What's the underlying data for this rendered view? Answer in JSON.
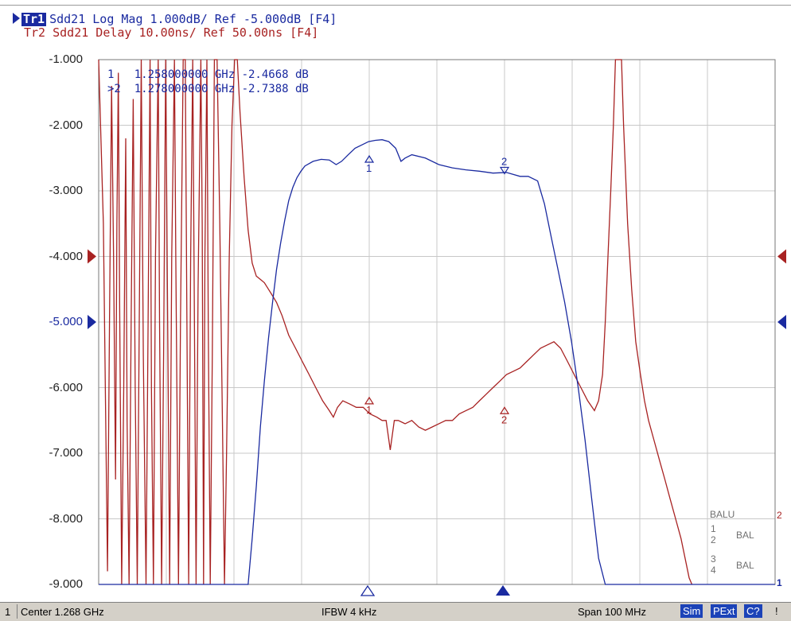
{
  "header": {
    "tr1_tag": "Tr1",
    "tr1_text": "Sdd21 Log Mag 1.000dB/ Ref -5.000dB [F4]",
    "tr2_text": "Tr2 Sdd21 Delay 10.00ns/ Ref 50.00ns [F4]"
  },
  "markers_table": [
    {
      "index": "1",
      "text": "1   1.258000000 GHz -2.4668 dB"
    },
    {
      "index": "2",
      "text": ">2  1.278000000 GHz -2.7388 dB"
    }
  ],
  "balun": {
    "title": "BALU",
    "l1": "1",
    "l2": "2",
    "l3": "3",
    "l4": "4",
    "b1": "BAL",
    "b2": "BAL",
    "edge2": "2",
    "edge1": "1"
  },
  "status": {
    "channel": "1",
    "center": "Center 1.268 GHz",
    "ifbw": "IFBW 4 kHz",
    "span": "Span 100 MHz",
    "btn_sim": "Sim",
    "btn_pext": "PExt",
    "btn_c": "C?",
    "btn_warn": "!"
  },
  "colors": {
    "tr1": "#1a2aa0",
    "tr2": "#a82222",
    "grid": "#c8c8c8"
  },
  "chart_data": {
    "type": "line",
    "x_range_ghz": [
      1.218,
      1.318
    ],
    "ylim": [
      -9,
      -1
    ],
    "ytick_labels": [
      "-1.000",
      "-2.000",
      "-3.000",
      "-4.000",
      "-5.000",
      "-6.000",
      "-7.000",
      "-8.000",
      "-9.000"
    ],
    "grid": true,
    "series": [
      {
        "name": "Tr1",
        "points": [
          [
            1.218,
            -9.0
          ],
          [
            1.2401,
            -9.0
          ],
          [
            1.2407,
            -8.3
          ],
          [
            1.2413,
            -7.5
          ],
          [
            1.2419,
            -6.6
          ],
          [
            1.2425,
            -5.9
          ],
          [
            1.2431,
            -5.25
          ],
          [
            1.2437,
            -4.7
          ],
          [
            1.2443,
            -4.2
          ],
          [
            1.2449,
            -3.8
          ],
          [
            1.2455,
            -3.45
          ],
          [
            1.2461,
            -3.15
          ],
          [
            1.2467,
            -2.95
          ],
          [
            1.2473,
            -2.8
          ],
          [
            1.2479,
            -2.7
          ],
          [
            1.2485,
            -2.62
          ],
          [
            1.2497,
            -2.55
          ],
          [
            1.2509,
            -2.52
          ],
          [
            1.2521,
            -2.53
          ],
          [
            1.2531,
            -2.6
          ],
          [
            1.2539,
            -2.55
          ],
          [
            1.2549,
            -2.45
          ],
          [
            1.2559,
            -2.35
          ],
          [
            1.2569,
            -2.3
          ],
          [
            1.2579,
            -2.25
          ],
          [
            1.2589,
            -2.23
          ],
          [
            1.2599,
            -2.22
          ],
          [
            1.2609,
            -2.25
          ],
          [
            1.2619,
            -2.35
          ],
          [
            1.2627,
            -2.55
          ],
          [
            1.2633,
            -2.5
          ],
          [
            1.2643,
            -2.45
          ],
          [
            1.2663,
            -2.5
          ],
          [
            1.2683,
            -2.6
          ],
          [
            1.2703,
            -2.65
          ],
          [
            1.2723,
            -2.68
          ],
          [
            1.2743,
            -2.7
          ],
          [
            1.2763,
            -2.73
          ],
          [
            1.2783,
            -2.72
          ],
          [
            1.2793,
            -2.75
          ],
          [
            1.2803,
            -2.78
          ],
          [
            1.2815,
            -2.78
          ],
          [
            1.2829,
            -2.85
          ],
          [
            1.2839,
            -3.2
          ],
          [
            1.2849,
            -3.7
          ],
          [
            1.2859,
            -4.2
          ],
          [
            1.2869,
            -4.7
          ],
          [
            1.2879,
            -5.3
          ],
          [
            1.2889,
            -6.0
          ],
          [
            1.2899,
            -6.8
          ],
          [
            1.2909,
            -7.7
          ],
          [
            1.2919,
            -8.6
          ],
          [
            1.2929,
            -9.0
          ],
          [
            1.318,
            -9.0
          ]
        ]
      },
      {
        "name": "Tr2",
        "points": [
          [
            1.218,
            -1.0
          ],
          [
            1.2187,
            -3.5
          ],
          [
            1.2193,
            -8.8
          ],
          [
            1.2196,
            -5.0
          ],
          [
            1.2199,
            -1.4
          ],
          [
            1.2202,
            -4.0
          ],
          [
            1.2205,
            -7.4
          ],
          [
            1.2207,
            -3.5
          ],
          [
            1.2209,
            -1.2
          ],
          [
            1.2211,
            -4.8
          ],
          [
            1.2214,
            -9.0
          ],
          [
            1.2217,
            -6.0
          ],
          [
            1.222,
            -2.2
          ],
          [
            1.2222,
            -6.5
          ],
          [
            1.2225,
            -9.0
          ],
          [
            1.2228,
            -5.0
          ],
          [
            1.2231,
            -1.6
          ],
          [
            1.2234,
            -6.0
          ],
          [
            1.2237,
            -9.0
          ],
          [
            1.224,
            -5.0
          ],
          [
            1.2243,
            -1.0
          ],
          [
            1.2246,
            -5.5
          ],
          [
            1.225,
            -9.0
          ],
          [
            1.2253,
            -5.0
          ],
          [
            1.2256,
            -1.0
          ],
          [
            1.2258,
            -6.0
          ],
          [
            1.2261,
            -9.0
          ],
          [
            1.2264,
            -4.0
          ],
          [
            1.2268,
            -1.0
          ],
          [
            1.227,
            -5.0
          ],
          [
            1.2273,
            -9.0
          ],
          [
            1.2276,
            -5.5
          ],
          [
            1.2279,
            -1.0
          ],
          [
            1.2282,
            -5.0
          ],
          [
            1.2285,
            -9.0
          ],
          [
            1.2288,
            -4.0
          ],
          [
            1.2292,
            -1.0
          ],
          [
            1.2294,
            -4.0
          ],
          [
            1.2298,
            -9.0
          ],
          [
            1.2301,
            -5.0
          ],
          [
            1.2305,
            -1.0
          ],
          [
            1.2308,
            -1.0
          ],
          [
            1.2311,
            -6.0
          ],
          [
            1.2313,
            -9.0
          ],
          [
            1.2316,
            -4.0
          ],
          [
            1.2319,
            -1.0
          ],
          [
            1.2321,
            -4.0
          ],
          [
            1.2324,
            -9.0
          ],
          [
            1.2327,
            -4.5
          ],
          [
            1.2331,
            -1.0
          ],
          [
            1.2333,
            -3.5
          ],
          [
            1.2335,
            -9.0
          ],
          [
            1.2337,
            -4.0
          ],
          [
            1.234,
            -1.0
          ],
          [
            1.2342,
            -5.0
          ],
          [
            1.2345,
            -9.0
          ],
          [
            1.2348,
            -5.5
          ],
          [
            1.2351,
            -1.0
          ],
          [
            1.2355,
            -1.0
          ],
          [
            1.2359,
            -3.5
          ],
          [
            1.2363,
            -6.5
          ],
          [
            1.2366,
            -9.0
          ],
          [
            1.2369,
            -7.0
          ],
          [
            1.2373,
            -4.0
          ],
          [
            1.2377,
            -2.0
          ],
          [
            1.2381,
            -1.0
          ],
          [
            1.2385,
            -1.0
          ],
          [
            1.2389,
            -1.8
          ],
          [
            1.2395,
            -2.8
          ],
          [
            1.2401,
            -3.6
          ],
          [
            1.2407,
            -4.1
          ],
          [
            1.2413,
            -4.3
          ],
          [
            1.2419,
            -4.35
          ],
          [
            1.2425,
            -4.4
          ],
          [
            1.2431,
            -4.5
          ],
          [
            1.2437,
            -4.6
          ],
          [
            1.2443,
            -4.7
          ],
          [
            1.2451,
            -4.9
          ],
          [
            1.2461,
            -5.2
          ],
          [
            1.2471,
            -5.4
          ],
          [
            1.2481,
            -5.6
          ],
          [
            1.2491,
            -5.8
          ],
          [
            1.2501,
            -6.0
          ],
          [
            1.2511,
            -6.2
          ],
          [
            1.2521,
            -6.35
          ],
          [
            1.2527,
            -6.45
          ],
          [
            1.2533,
            -6.3
          ],
          [
            1.2541,
            -6.2
          ],
          [
            1.2551,
            -6.25
          ],
          [
            1.2561,
            -6.3
          ],
          [
            1.2571,
            -6.3
          ],
          [
            1.2581,
            -6.4
          ],
          [
            1.2591,
            -6.45
          ],
          [
            1.2599,
            -6.5
          ],
          [
            1.2605,
            -6.5
          ],
          [
            1.2611,
            -6.95
          ],
          [
            1.2617,
            -6.5
          ],
          [
            1.2623,
            -6.5
          ],
          [
            1.2633,
            -6.55
          ],
          [
            1.2643,
            -6.5
          ],
          [
            1.2653,
            -6.6
          ],
          [
            1.2663,
            -6.65
          ],
          [
            1.2673,
            -6.6
          ],
          [
            1.2683,
            -6.55
          ],
          [
            1.2693,
            -6.5
          ],
          [
            1.2703,
            -6.5
          ],
          [
            1.2713,
            -6.4
          ],
          [
            1.2723,
            -6.35
          ],
          [
            1.2733,
            -6.3
          ],
          [
            1.2743,
            -6.2
          ],
          [
            1.2753,
            -6.1
          ],
          [
            1.2763,
            -6.0
          ],
          [
            1.2773,
            -5.9
          ],
          [
            1.2783,
            -5.8
          ],
          [
            1.2793,
            -5.75
          ],
          [
            1.2803,
            -5.7
          ],
          [
            1.2813,
            -5.6
          ],
          [
            1.2823,
            -5.5
          ],
          [
            1.2833,
            -5.4
          ],
          [
            1.2843,
            -5.35
          ],
          [
            1.2853,
            -5.3
          ],
          [
            1.2863,
            -5.4
          ],
          [
            1.2873,
            -5.6
          ],
          [
            1.2883,
            -5.8
          ],
          [
            1.2893,
            -6.0
          ],
          [
            1.2903,
            -6.2
          ],
          [
            1.2913,
            -6.35
          ],
          [
            1.2919,
            -6.2
          ],
          [
            1.2925,
            -5.8
          ],
          [
            1.2929,
            -5.0
          ],
          [
            1.2933,
            -4.0
          ],
          [
            1.2937,
            -3.0
          ],
          [
            1.2941,
            -2.0
          ],
          [
            1.2944,
            -1.0
          ],
          [
            1.2953,
            -1.0
          ],
          [
            1.2956,
            -2.0
          ],
          [
            1.2962,
            -3.5
          ],
          [
            1.2968,
            -4.5
          ],
          [
            1.2974,
            -5.3
          ],
          [
            1.2981,
            -5.8
          ],
          [
            1.2987,
            -6.2
          ],
          [
            1.2993,
            -6.5
          ],
          [
            1.3001,
            -6.8
          ],
          [
            1.3009,
            -7.1
          ],
          [
            1.3017,
            -7.4
          ],
          [
            1.3025,
            -7.7
          ],
          [
            1.3033,
            -8.0
          ],
          [
            1.3041,
            -8.3
          ],
          [
            1.3047,
            -8.6
          ],
          [
            1.3053,
            -8.9
          ],
          [
            1.3057,
            -9.0
          ]
        ]
      }
    ],
    "markers": [
      {
        "name": "1",
        "trace": "Tr1",
        "x": 1.258,
        "y": -2.4668
      },
      {
        "name": "2",
        "trace": "Tr1",
        "x": 1.278,
        "y": -2.7388
      },
      {
        "name": "1",
        "trace": "Tr2",
        "x": 1.258,
        "y": -6.15
      },
      {
        "name": "2",
        "trace": "Tr2",
        "x": 1.278,
        "y": -6.3
      }
    ],
    "ref_level_tr1": -5.0,
    "ref_level_tr2": -4.0
  }
}
